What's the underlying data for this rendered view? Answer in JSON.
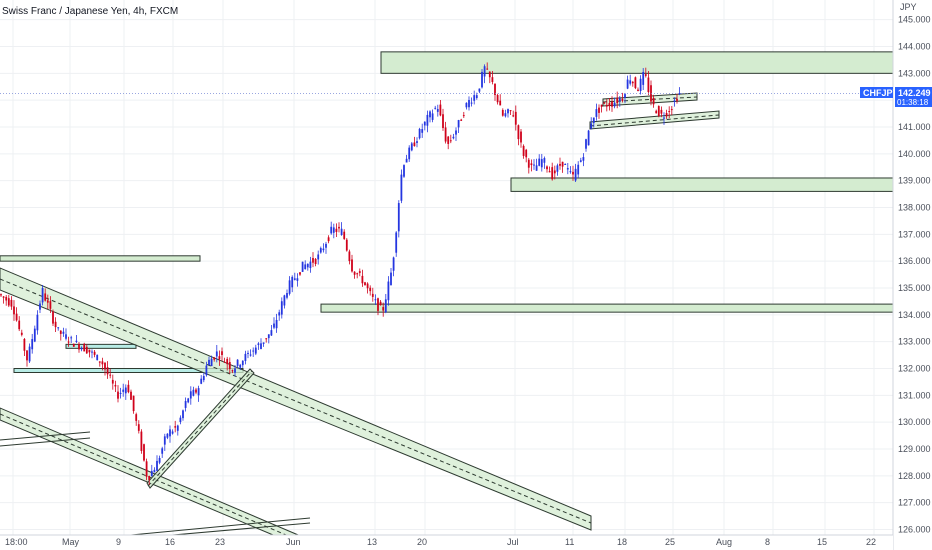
{
  "header": {
    "title": "Swiss Franc / Japanese Yen, 4h, FXCM"
  },
  "axis": {
    "unit": "JPY"
  },
  "badge": {
    "symbol": "CHFJPY",
    "price": "142.249",
    "countdown": "01:38:18"
  },
  "colors": {
    "up": "#2436e0",
    "down": "#d0021b",
    "zone_fill": "#d4ecd0",
    "zone_stroke": "#2d3a30",
    "aqua_fill": "#b8ece6",
    "badge_bg": "#2962ff",
    "grid": "#eef0f3"
  },
  "chart_data": {
    "type": "candlestick",
    "title": "Swiss Franc / Japanese Yen, 4h, FXCM",
    "ylabel": "JPY",
    "ylim": [
      125.9,
      145.8
    ],
    "y_ticks": [
      "145.000",
      "144.000",
      "143.000",
      "142.000",
      "141.000",
      "140.000",
      "139.000",
      "138.000",
      "137.000",
      "136.000",
      "135.000",
      "134.000",
      "133.000",
      "132.000",
      "131.000",
      "130.000",
      "129.000",
      "128.000",
      "127.000",
      "126.000"
    ],
    "x_ticks": [
      "18:00",
      "May",
      "9",
      "16",
      "23",
      "Jun",
      "13",
      "20",
      "Jul",
      "11",
      "18",
      "25",
      "Aug",
      "8",
      "15",
      "22"
    ],
    "last_price": 142.249,
    "price_path": [
      [
        0,
        134.8
      ],
      [
        15,
        134.4
      ],
      [
        30,
        132.3
      ],
      [
        45,
        134.9
      ],
      [
        60,
        133.4
      ],
      [
        75,
        133.0
      ],
      [
        90,
        132.7
      ],
      [
        105,
        132.2
      ],
      [
        120,
        131.0
      ],
      [
        130,
        131.4
      ],
      [
        140,
        129.8
      ],
      [
        150,
        127.9
      ],
      [
        160,
        128.5
      ],
      [
        170,
        129.6
      ],
      [
        180,
        129.8
      ],
      [
        190,
        130.9
      ],
      [
        200,
        131.2
      ],
      [
        210,
        132.2
      ],
      [
        220,
        132.6
      ],
      [
        235,
        132.0
      ],
      [
        250,
        132.5
      ],
      [
        265,
        133.0
      ],
      [
        275,
        133.4
      ],
      [
        290,
        135.0
      ],
      [
        305,
        135.8
      ],
      [
        320,
        136.1
      ],
      [
        335,
        137.2
      ],
      [
        345,
        137.1
      ],
      [
        355,
        135.7
      ],
      [
        365,
        135.3
      ],
      [
        375,
        134.6
      ],
      [
        385,
        134.1
      ],
      [
        395,
        135.8
      ],
      [
        405,
        139.6
      ],
      [
        415,
        140.3
      ],
      [
        430,
        141.3
      ],
      [
        440,
        141.8
      ],
      [
        450,
        140.3
      ],
      [
        460,
        141.0
      ],
      [
        470,
        141.9
      ],
      [
        480,
        142.3
      ],
      [
        487,
        143.2
      ],
      [
        495,
        142.6
      ],
      [
        505,
        141.4
      ],
      [
        515,
        141.6
      ],
      [
        525,
        140.1
      ],
      [
        535,
        139.4
      ],
      [
        545,
        139.8
      ],
      [
        555,
        139.2
      ],
      [
        565,
        139.7
      ],
      [
        575,
        139.1
      ],
      [
        585,
        139.9
      ],
      [
        595,
        141.4
      ],
      [
        605,
        141.8
      ],
      [
        615,
        141.9
      ],
      [
        625,
        142.1
      ],
      [
        632,
        142.9
      ],
      [
        640,
        142.4
      ],
      [
        647,
        143.0
      ],
      [
        655,
        141.8
      ],
      [
        665,
        141.4
      ],
      [
        675,
        141.8
      ],
      [
        681,
        142.249
      ]
    ],
    "zones": [
      {
        "price_top": 143.8,
        "price_bottom": 143.0,
        "x_start": 381
      },
      {
        "price_top": 139.1,
        "price_bottom": 138.6,
        "x_start": 511
      },
      {
        "price_top": 134.4,
        "price_bottom": 134.1,
        "x_start": 321
      },
      {
        "price_top": 136.2,
        "price_bottom": 136.0,
        "x_start": 0,
        "x_end": 200
      }
    ]
  }
}
